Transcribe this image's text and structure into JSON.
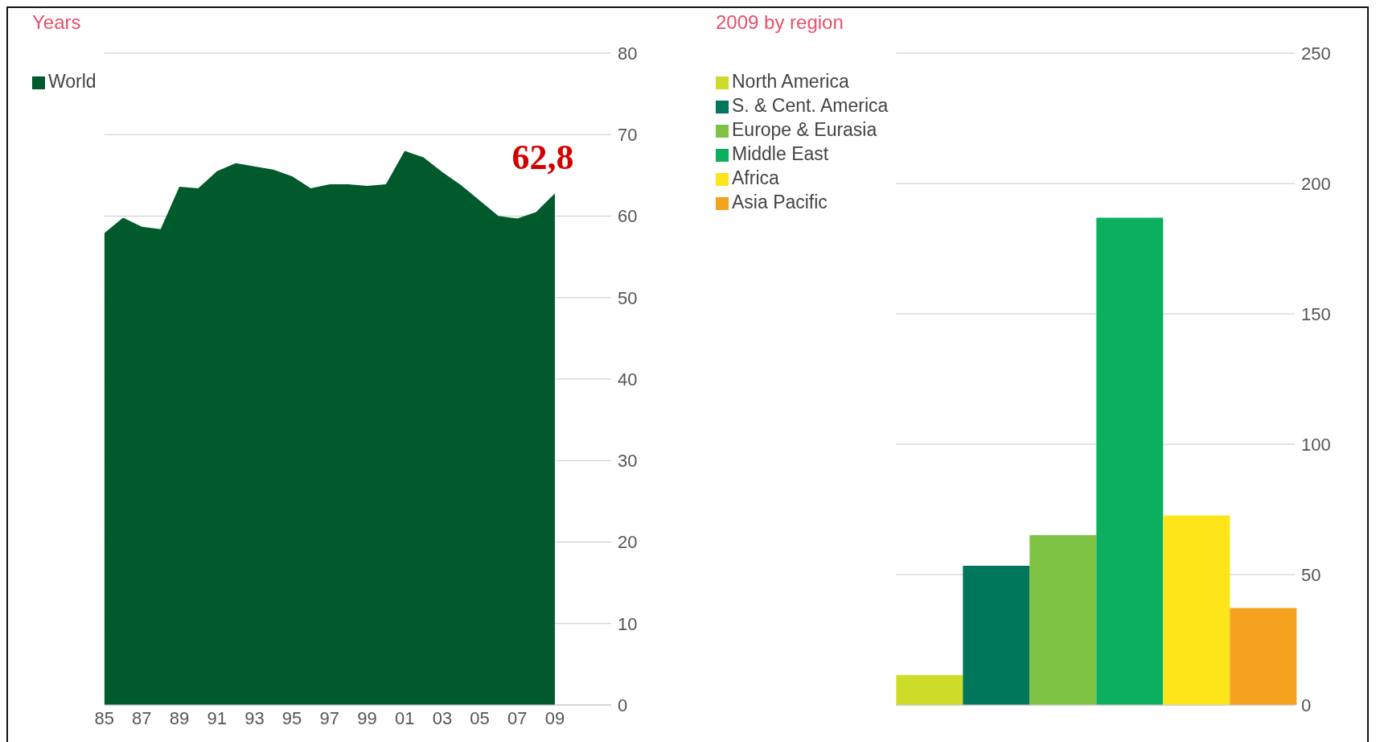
{
  "chart_data": [
    {
      "type": "area",
      "title": "Years",
      "x": [
        1985,
        1986,
        1987,
        1988,
        1989,
        1990,
        1991,
        1992,
        1993,
        1994,
        1995,
        1996,
        1997,
        1998,
        1999,
        2000,
        2001,
        2002,
        2003,
        2004,
        2005,
        2006,
        2007,
        2008,
        2009
      ],
      "series": [
        {
          "name": "World",
          "color": "#005a2b",
          "values": [
            57.9,
            59.8,
            58.7,
            58.4,
            63.6,
            63.4,
            65.5,
            66.5,
            66.1,
            65.7,
            64.9,
            63.4,
            63.9,
            63.9,
            63.7,
            63.9,
            68.0,
            67.2,
            65.4,
            63.8,
            61.9,
            60.0,
            59.7,
            60.5,
            62.8
          ]
        }
      ],
      "xlim": [
        1985,
        2012
      ],
      "xticks": [
        {
          "value": 1985,
          "label": "85"
        },
        {
          "value": 1987,
          "label": "87"
        },
        {
          "value": 1989,
          "label": "89"
        },
        {
          "value": 1991,
          "label": "91"
        },
        {
          "value": 1993,
          "label": "93"
        },
        {
          "value": 1995,
          "label": "95"
        },
        {
          "value": 1997,
          "label": "97"
        },
        {
          "value": 1999,
          "label": "99"
        },
        {
          "value": 2001,
          "label": "01"
        },
        {
          "value": 2003,
          "label": "03"
        },
        {
          "value": 2005,
          "label": "05"
        },
        {
          "value": 2007,
          "label": "07"
        },
        {
          "value": 2009,
          "label": "09"
        }
      ],
      "ylim": [
        0,
        80
      ],
      "yticks": [
        0,
        10,
        20,
        30,
        40,
        50,
        60,
        70,
        80
      ],
      "grid": "y",
      "legend": "top left",
      "annotations": [
        {
          "text": "62,8",
          "x": 2009,
          "y": 62.8
        }
      ]
    },
    {
      "type": "bar",
      "title": "2009 by region",
      "categories": [
        null
      ],
      "series": [
        {
          "name": "North America",
          "color": "#cddc29",
          "values": [
            11.5
          ]
        },
        {
          "name": "S. & Cent. America",
          "color": "#00775a",
          "values": [
            53.4
          ]
        },
        {
          "name": "Europe & Eurasia",
          "color": "#7dc242",
          "values": [
            65.1
          ]
        },
        {
          "name": "Middle East",
          "color": "#0baf5e",
          "values": [
            186.9
          ]
        },
        {
          "name": "Africa",
          "color": "#fde51a",
          "values": [
            72.7
          ]
        },
        {
          "name": "Asia Pacific",
          "color": "#f5a31f",
          "values": [
            37.2
          ]
        }
      ],
      "ylim": [
        0,
        250
      ],
      "yticks": [
        0,
        50,
        100,
        150,
        200,
        250
      ],
      "grid": "y",
      "legend": "top left"
    }
  ]
}
